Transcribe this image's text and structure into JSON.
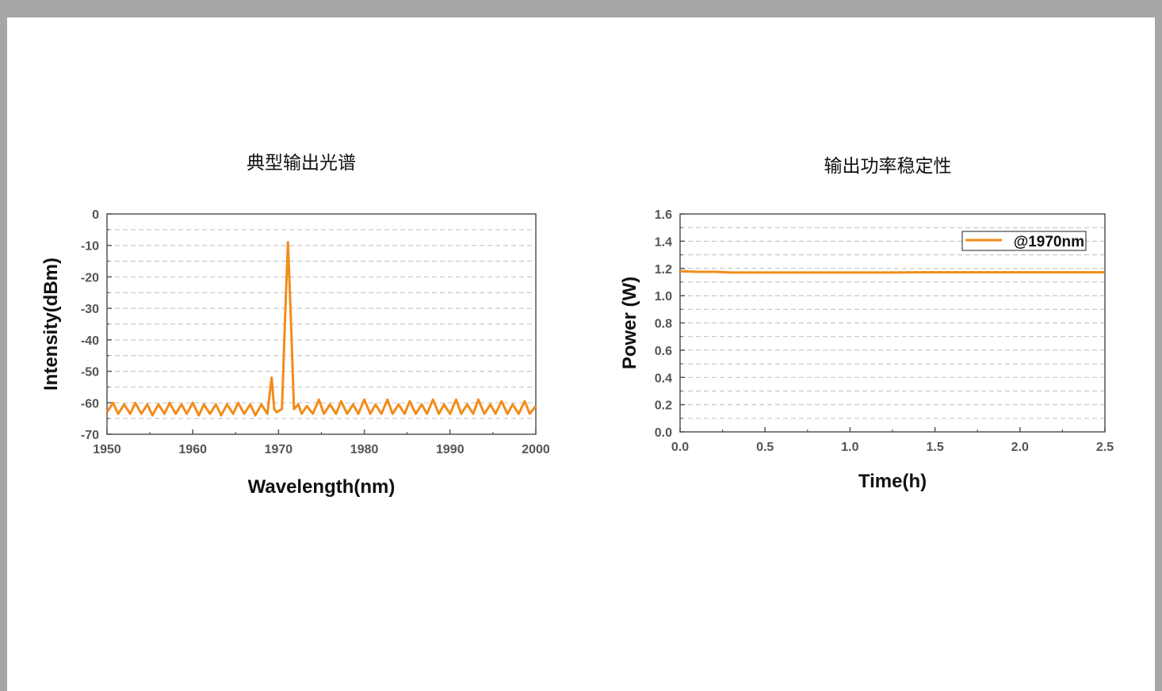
{
  "colors": {
    "series": "#f28c1a",
    "frame": "#a6a6a6",
    "grid": "#bdbdbd",
    "axis": "#555555"
  },
  "chart_data": [
    {
      "type": "line",
      "title": "典型输出光谱",
      "xlabel": "Wavelength(nm)",
      "ylabel": "Intensity(dBm)",
      "xlim": [
        1950,
        2000
      ],
      "ylim": [
        -70,
        0
      ],
      "xticks": [
        1950,
        1960,
        1970,
        1980,
        1990,
        2000
      ],
      "yticks": [
        0,
        -10,
        -20,
        -30,
        -40,
        -50,
        -60,
        -70
      ],
      "grid": true,
      "series": [
        {
          "name": "",
          "x": [
            1950,
            1950.7,
            1951.3,
            1952,
            1952.7,
            1953.3,
            1954,
            1954.7,
            1955.3,
            1956,
            1956.7,
            1957.3,
            1958,
            1958.7,
            1959.3,
            1960,
            1960.7,
            1961.3,
            1962,
            1962.7,
            1963.3,
            1964,
            1964.7,
            1965.3,
            1966,
            1966.7,
            1967.3,
            1968,
            1968.7,
            1969.2,
            1969.5,
            1969.8,
            1970.4,
            1970.8,
            1971.1,
            1971.4,
            1971.8,
            1972.3,
            1972.7,
            1973.3,
            1974,
            1974.7,
            1975.3,
            1976,
            1976.7,
            1977.3,
            1978,
            1978.7,
            1979.3,
            1980,
            1980.7,
            1981.3,
            1982,
            1982.7,
            1983.3,
            1984,
            1984.7,
            1985.3,
            1986,
            1986.7,
            1987.3,
            1988,
            1988.7,
            1989.3,
            1990,
            1990.7,
            1991.3,
            1992,
            1992.7,
            1993.3,
            1994,
            1994.7,
            1995.3,
            1996,
            1996.7,
            1997.3,
            1998,
            1998.7,
            1999.3,
            2000
          ],
          "y": [
            -63,
            -60,
            -63.5,
            -60.5,
            -63.5,
            -60,
            -63.5,
            -60.5,
            -64,
            -60.5,
            -63.5,
            -60,
            -63.5,
            -60.5,
            -63.5,
            -60,
            -64,
            -60.5,
            -63.5,
            -60.5,
            -64,
            -60.5,
            -63.5,
            -60,
            -63.5,
            -60.5,
            -64,
            -60.5,
            -63.5,
            -52,
            -62,
            -63,
            -62,
            -30,
            -9,
            -30,
            -62,
            -60.5,
            -63.5,
            -61,
            -63.5,
            -59,
            -63.5,
            -60.5,
            -63.5,
            -59.5,
            -63.5,
            -60.5,
            -63.5,
            -59,
            -63.5,
            -60.5,
            -63.5,
            -59,
            -63.5,
            -60.5,
            -63.5,
            -59.5,
            -63.5,
            -60.5,
            -63.5,
            -59,
            -63.5,
            -60.5,
            -63.5,
            -59,
            -63.5,
            -60.5,
            -63.5,
            -59,
            -63.5,
            -60.5,
            -63.5,
            -59.5,
            -63.5,
            -60.5,
            -63.5,
            -59.5,
            -63.5,
            -61
          ]
        }
      ]
    },
    {
      "type": "line",
      "title": "输出功率稳定性",
      "xlabel": "Time(h)",
      "ylabel": "Power (W)",
      "xlim": [
        0,
        2.5
      ],
      "ylim": [
        0,
        1.6
      ],
      "xticks": [
        "0.0",
        "0.5",
        "1.0",
        "1.5",
        "2.0",
        "2.5"
      ],
      "yticks": [
        "0.0",
        "0.2",
        "0.4",
        "0.6",
        "0.8",
        "1.0",
        "1.2",
        "1.4",
        "1.6"
      ],
      "grid": true,
      "legend": "top-right",
      "series": [
        {
          "name": "@1970nm",
          "x": [
            0,
            0.1,
            0.2,
            0.3,
            0.4,
            0.6,
            0.8,
            1.0,
            1.2,
            1.4,
            1.6,
            1.8,
            2.0,
            2.2,
            2.4,
            2.5
          ],
          "y": [
            1.18,
            1.175,
            1.175,
            1.17,
            1.17,
            1.17,
            1.17,
            1.17,
            1.17,
            1.172,
            1.172,
            1.172,
            1.172,
            1.172,
            1.172,
            1.172
          ]
        }
      ]
    }
  ]
}
